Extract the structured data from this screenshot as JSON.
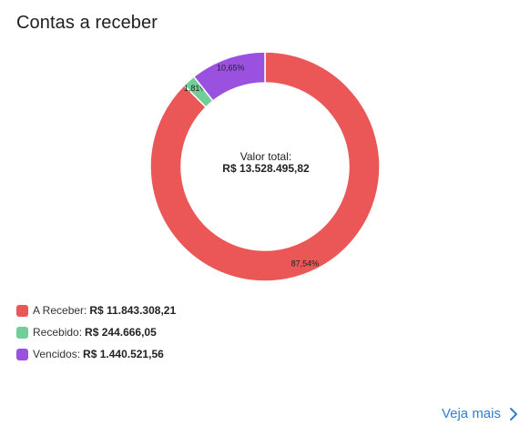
{
  "title": "Contas a receber",
  "chart_data": {
    "type": "pie",
    "donut": true,
    "slices": [
      {
        "name": "A Receber",
        "percent": 87.54,
        "label": "87,54%",
        "color": "#eb5757"
      },
      {
        "name": "Recebido",
        "percent": 1.81,
        "label": "1,81%",
        "color": "#6fcf97"
      },
      {
        "name": "Vencidos",
        "percent": 10.65,
        "label": "10,65%",
        "color": "#9b51e0"
      }
    ],
    "center_label": "Valor total:",
    "center_value": "R$ 13.528.495,82"
  },
  "legend": [
    {
      "label": "A Receber:",
      "value": "R$ 11.843.308,21",
      "color": "#eb5757",
      "icon": "red-square-icon"
    },
    {
      "label": "Recebido:",
      "value": "R$ 244.666,05",
      "color": "#6fcf97",
      "icon": "green-square-icon"
    },
    {
      "label": "Vencidos:",
      "value": "R$ 1.440.521,56",
      "color": "#9b51e0",
      "icon": "purple-square-icon"
    }
  ],
  "see_more": {
    "label": "Veja mais",
    "icon": "chevron-right-icon",
    "color": "#2f80d1"
  }
}
